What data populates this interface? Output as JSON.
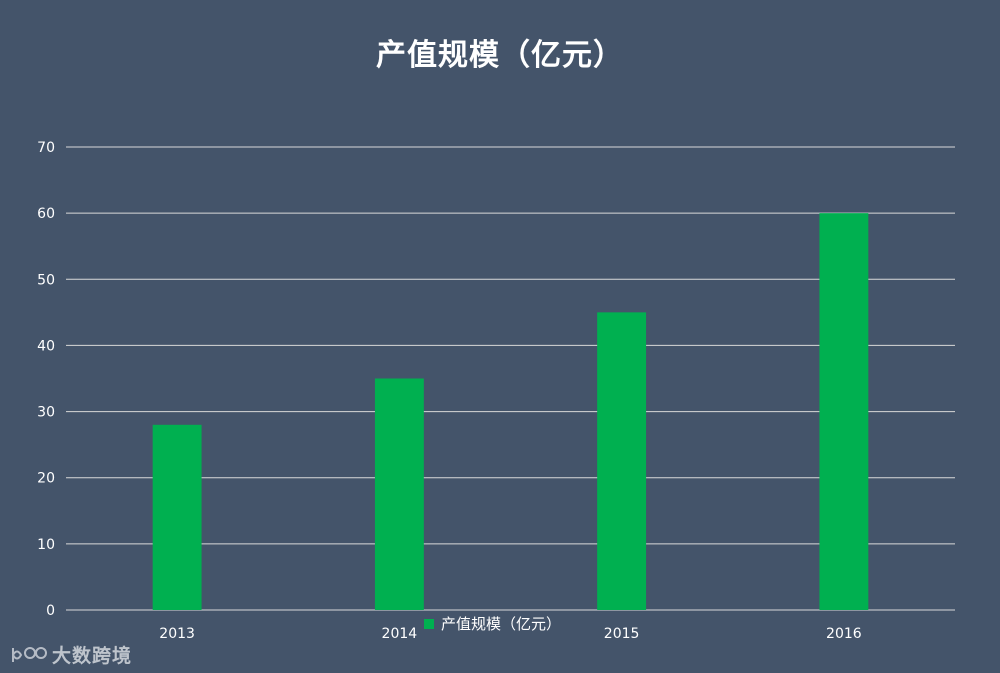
{
  "chart_data": {
    "type": "bar",
    "title": "产值规模（亿元）",
    "categories": [
      "2013",
      "2014",
      "2015",
      "2016"
    ],
    "series": [
      {
        "name": "产值规模（亿元）",
        "values": [
          28,
          35,
          45,
          60
        ]
      }
    ],
    "xlabel": "",
    "ylabel": "",
    "ylim": [
      0,
      70
    ],
    "yticks": [
      "0",
      "10",
      "20",
      "30",
      "40",
      "50",
      "60",
      "70"
    ],
    "grid": true,
    "legend": "bottom",
    "colors": {
      "background": "#44546a",
      "bar": "#00b050",
      "gridline": "#d9d9d9",
      "text": "#ffffff"
    }
  },
  "watermark": {
    "text": "大数跨境",
    "logo_icon": "ebrun-logo-icon"
  }
}
